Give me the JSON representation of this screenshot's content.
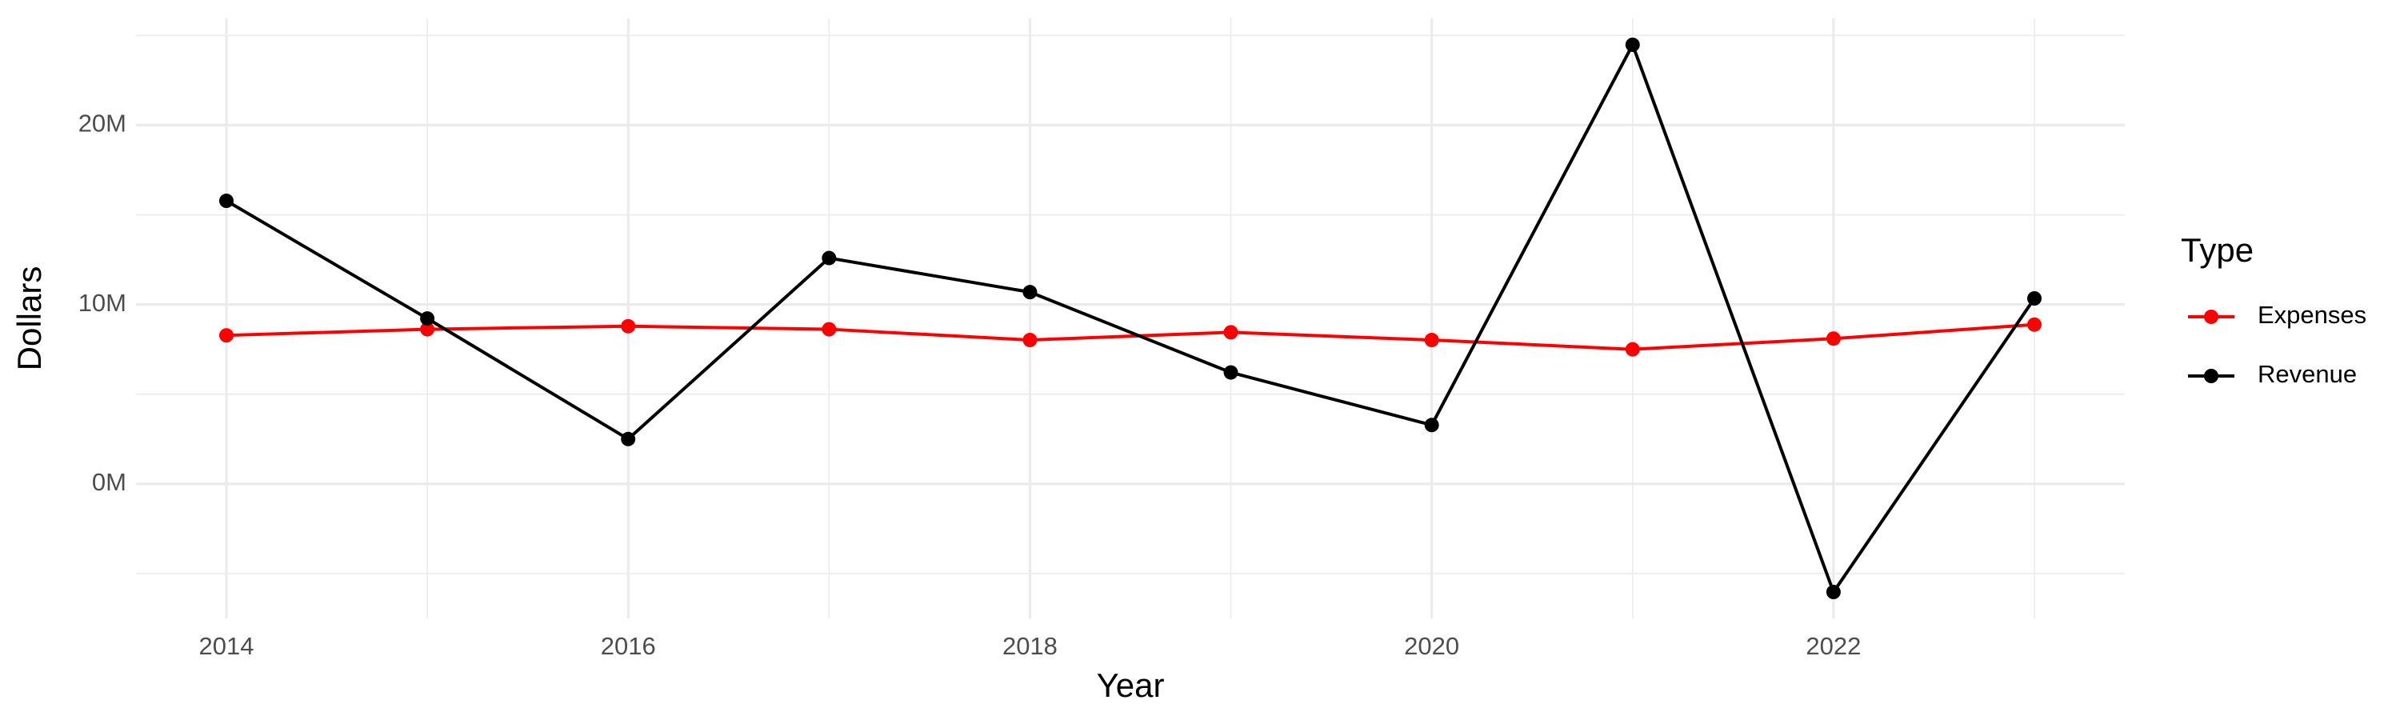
{
  "chart_data": {
    "type": "line",
    "x_label": "Year",
    "y_label": "Dollars",
    "legend_title": "Type",
    "x": [
      2014,
      2015,
      2016,
      2017,
      2018,
      2019,
      2020,
      2021,
      2022,
      2023
    ],
    "series": [
      {
        "name": "Expenses",
        "color": "#ff0000",
        "values": [
          8280000,
          8620000,
          8790000,
          8620000,
          8020000,
          8450000,
          8020000,
          7500000,
          8100000,
          8880000
        ]
      },
      {
        "name": "Revenue",
        "color": "#000000",
        "values": [
          15780000,
          9220000,
          2500000,
          12590000,
          10690000,
          6210000,
          3280000,
          24480000,
          -6030000,
          10340000
        ]
      }
    ],
    "xlim": [
      2013.55,
      2023.45
    ],
    "xticks": [
      2014,
      2016,
      2018,
      2020,
      2022
    ],
    "ylim": [
      -7500000,
      25950000
    ],
    "yticks": [
      {
        "value": 0,
        "label": "0M"
      },
      {
        "value": 10000000,
        "label": "10M"
      },
      {
        "value": 20000000,
        "label": "20M"
      }
    ],
    "grid": true,
    "legend": "right"
  }
}
